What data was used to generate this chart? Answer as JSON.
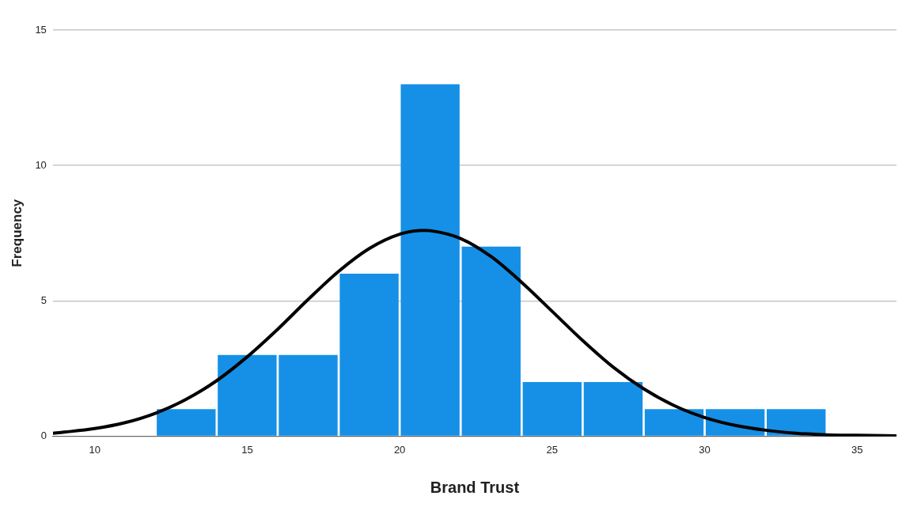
{
  "chart_data": {
    "type": "histogram",
    "xlabel": "Brand Trust",
    "ylabel": "Frequency",
    "bins": [
      12,
      14,
      16,
      18,
      20,
      22,
      24,
      26,
      28,
      30,
      32,
      34
    ],
    "values": [
      1,
      3,
      3,
      6,
      13,
      7,
      2,
      2,
      1,
      1,
      1
    ],
    "color": "#1590e6",
    "series": [
      {
        "type": "line",
        "color": "#000000",
        "x": [
          8.63,
          9,
          10,
          11,
          12,
          13,
          14,
          15,
          16,
          17,
          18,
          19,
          20,
          20.8,
          21,
          22,
          23,
          24,
          25,
          26,
          27,
          28,
          29,
          30,
          31,
          32,
          33,
          34,
          35,
          36.29
        ],
        "values": [
          0.11,
          0.15,
          0.28,
          0.5,
          0.85,
          1.36,
          2.05,
          2.93,
          3.95,
          5.05,
          6.09,
          6.93,
          7.46,
          7.6,
          7.59,
          7.3,
          6.63,
          5.68,
          4.61,
          3.53,
          2.55,
          1.75,
          1.13,
          0.69,
          0.4,
          0.22,
          0.11,
          0.05,
          0.03,
          0.01
        ]
      }
    ],
    "xlim": [
      8.63,
      36.29
    ],
    "xticks": [
      10,
      15,
      20,
      25,
      30,
      35
    ],
    "ylim": [
      0,
      15
    ],
    "yticks": [
      0,
      5,
      10,
      15
    ],
    "grid": "y",
    "legend": false,
    "marker": "none"
  }
}
